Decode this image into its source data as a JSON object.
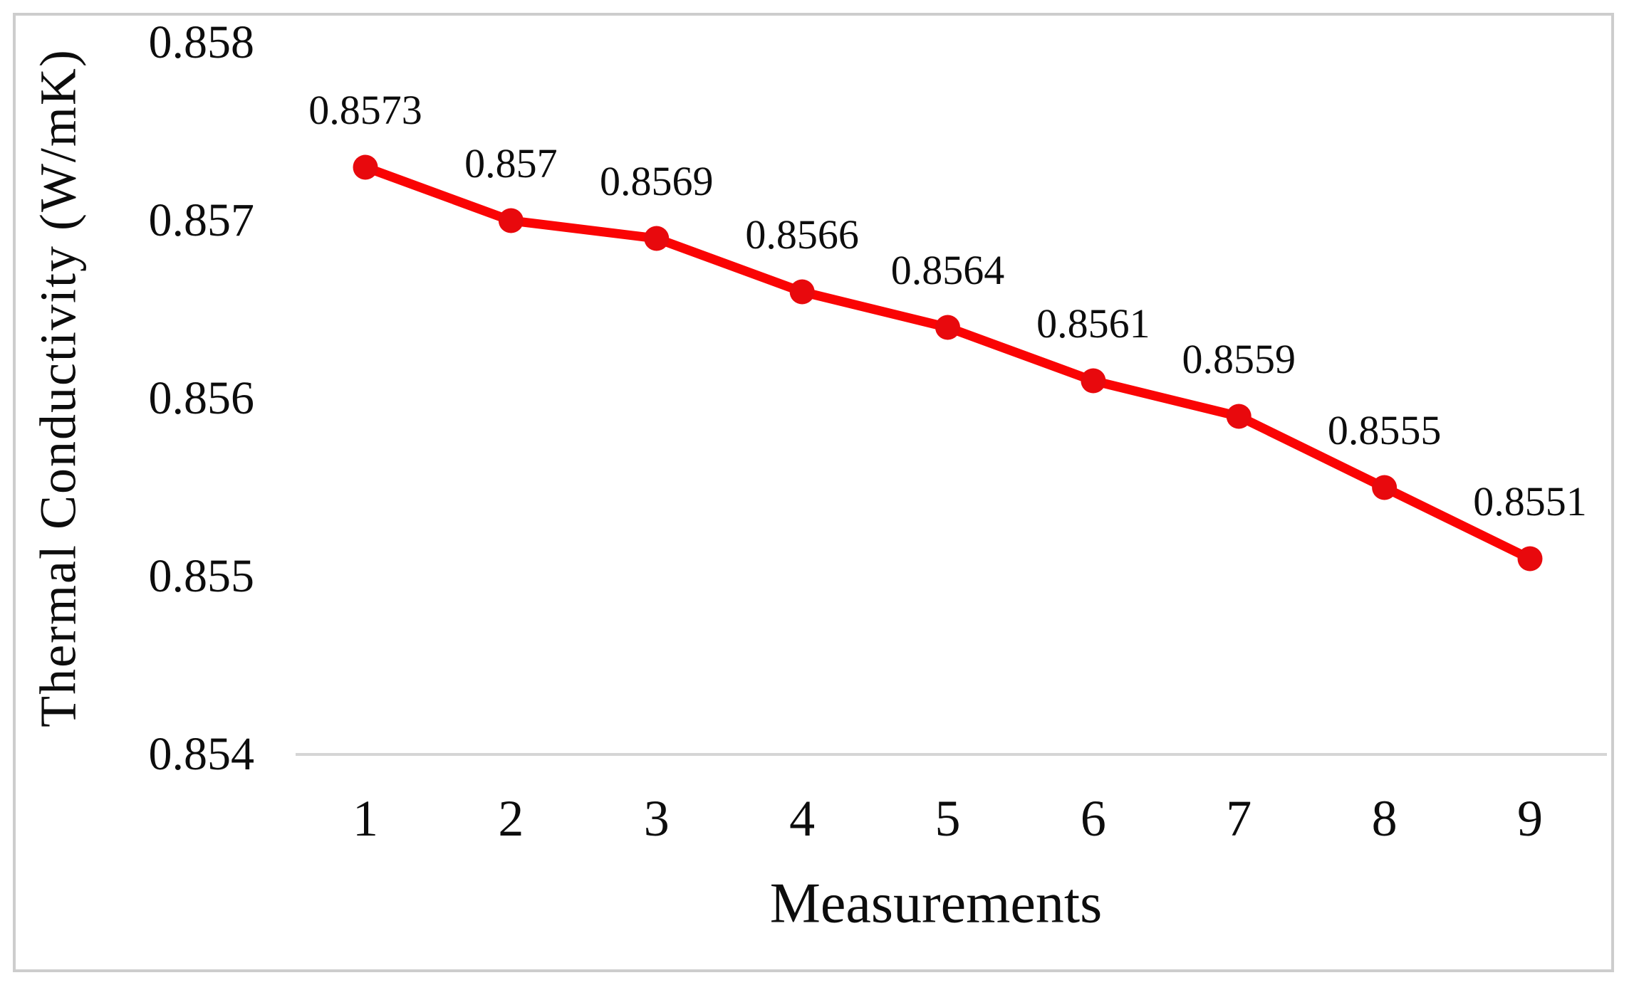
{
  "figure": {
    "background": "#ffffff",
    "border_color": "#cdcdcd",
    "text_color": "#0d0d0d"
  },
  "chart_data": {
    "type": "line",
    "title": "",
    "xlabel": "Measurements",
    "ylabel": "Thermal Conductivity  (W/mK)",
    "categories": [
      "1",
      "2",
      "3",
      "4",
      "5",
      "6",
      "7",
      "8",
      "9"
    ],
    "series": [
      {
        "values": [
          0.8573,
          0.857,
          0.8569,
          0.8566,
          0.8564,
          0.8561,
          0.8559,
          0.8555,
          0.8551
        ],
        "point_labels": [
          "0.8573",
          "0.857",
          "0.8569",
          "0.8566",
          "0.8564",
          "0.8561",
          "0.8559",
          "0.8555",
          "0.8551"
        ],
        "line_color": "#fa0404",
        "marker_color": "#e8090d",
        "marker": "circle"
      }
    ],
    "ylim": [
      0.854,
      0.858
    ],
    "yticks": [
      "0.858",
      "0.857",
      "0.856",
      "0.855",
      "0.854"
    ],
    "ytick_values": [
      0.858,
      0.857,
      0.856,
      0.855,
      0.854
    ],
    "grid": false,
    "legend_position": "none",
    "axis_line_color": "#d5d5d5",
    "data_labels_position": "above"
  }
}
